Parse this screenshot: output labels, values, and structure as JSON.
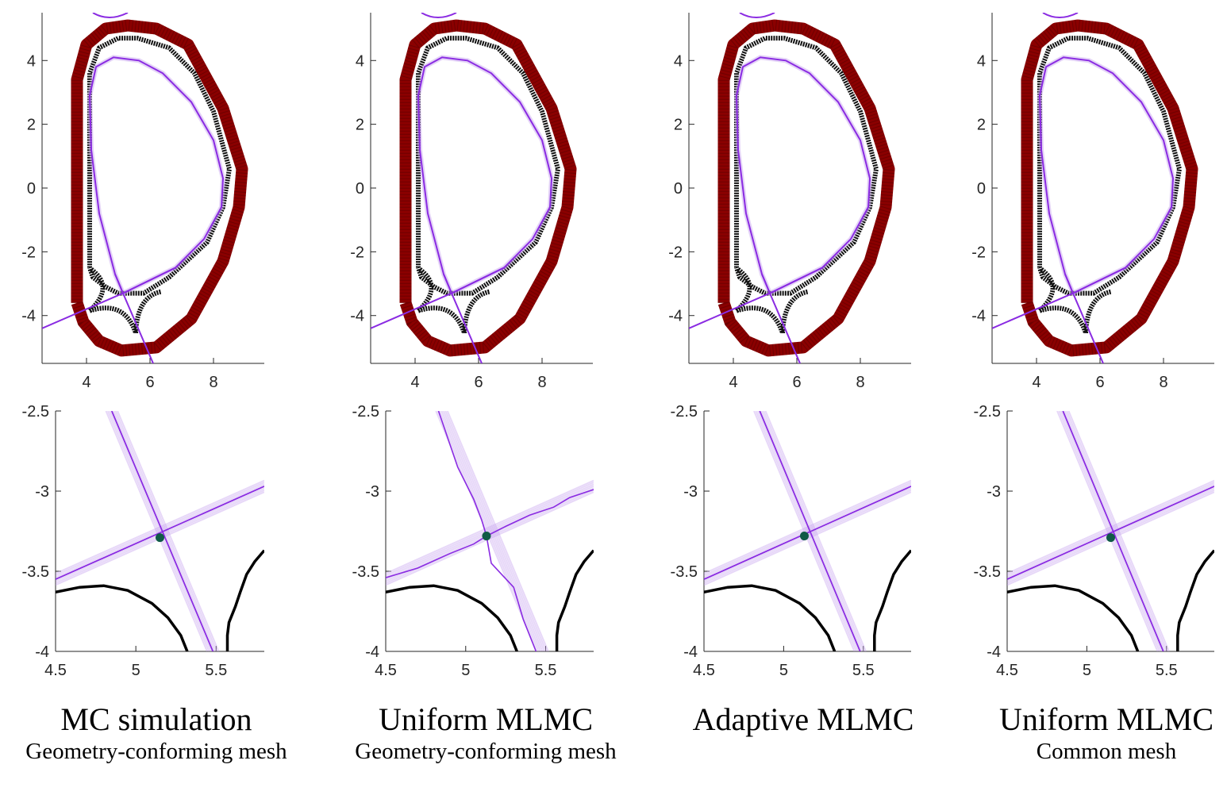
{
  "colors": {
    "wall": "#8b0000",
    "boundary": "#111111",
    "separatrix": "#8a2be2",
    "separatrix_light": "#c9a8f0",
    "xpoint": "#0f5a46",
    "axis": "#262626"
  },
  "captions": [
    {
      "title": "MC simulation",
      "subtitle": "Geometry-conforming mesh"
    },
    {
      "title": "Uniform MLMC",
      "subtitle": "Geometry-conforming mesh"
    },
    {
      "title": "Adaptive MLMC",
      "subtitle": ""
    },
    {
      "title": "Uniform MLMC",
      "subtitle": "Common mesh"
    }
  ],
  "chart_data": [
    {
      "type": "line",
      "panel": "overview",
      "xlim": [
        2.6,
        9.6
      ],
      "ylim": [
        -5.5,
        5.5
      ],
      "xticks": [
        4,
        6,
        8
      ],
      "xtick_labels": [
        "4",
        "6",
        "8"
      ],
      "yticks": [
        4,
        2,
        0,
        -2,
        -4
      ],
      "ytick_labels": [
        "4",
        "2",
        "0",
        "-2",
        "-4"
      ],
      "grid": false,
      "series": [
        {
          "role": "wall",
          "x": [
            3.7,
            3.7,
            4.0,
            4.6,
            5.3,
            6.2,
            7.2,
            8.3,
            8.9,
            8.8,
            8.3,
            7.3,
            6.2,
            5.1,
            4.4,
            3.9,
            3.7
          ],
          "y": [
            -3.6,
            3.4,
            4.5,
            5.0,
            5.1,
            5.0,
            4.5,
            2.5,
            0.6,
            -0.6,
            -2.3,
            -4.1,
            -5.0,
            -5.1,
            -4.8,
            -4.2,
            -3.6
          ]
        },
        {
          "role": "first-wall",
          "x": [
            4.1,
            4.1,
            4.4,
            5.0,
            5.6,
            6.6,
            7.4,
            8.0,
            8.5,
            8.3,
            7.8,
            6.6,
            5.8,
            5.0,
            4.6,
            4.2,
            4.1
          ],
          "y": [
            -2.5,
            3.6,
            4.4,
            4.7,
            4.7,
            4.4,
            3.6,
            2.4,
            0.6,
            -0.6,
            -1.7,
            -2.8,
            -3.3,
            -3.3,
            -3.1,
            -2.8,
            -2.5
          ]
        },
        {
          "role": "separatrix",
          "x": [
            5.15,
            4.9,
            4.4,
            4.15,
            4.1,
            4.3,
            4.85,
            5.65,
            6.4,
            7.3,
            8.0,
            8.3,
            8.25,
            7.7,
            6.8,
            5.15
          ],
          "y": [
            -3.3,
            -2.7,
            -0.8,
            1.2,
            2.9,
            3.8,
            4.1,
            4.0,
            3.6,
            2.7,
            1.5,
            0.3,
            -0.6,
            -1.6,
            -2.5,
            -3.3
          ]
        },
        {
          "role": "separatrix-legs",
          "x": [
            2.6,
            5.15,
            5.15,
            6.1
          ],
          "y": [
            -4.4,
            -3.3,
            -3.3,
            -5.5
          ]
        }
      ]
    },
    {
      "type": "line",
      "panel": "x-point zoom",
      "xlim": [
        4.5,
        5.8
      ],
      "ylim": [
        -4,
        -2.5
      ],
      "xticks": [
        4.5,
        5,
        5.5
      ],
      "xtick_labels": [
        "4.5",
        "5",
        "5.5"
      ],
      "yticks": [
        -2.5,
        -3,
        -3.5,
        -4
      ],
      "ytick_labels": [
        "-2.5",
        "-3",
        "-3.5",
        "-4"
      ],
      "grid": false,
      "xpoints": [
        {
          "x": 5.15,
          "y": -3.29
        },
        {
          "x": 5.13,
          "y": -3.28
        },
        {
          "x": 5.13,
          "y": -3.28
        },
        {
          "x": 5.15,
          "y": -3.29
        }
      ],
      "series": [
        {
          "role": "first-wall-left",
          "x": [
            4.5,
            4.65,
            4.8,
            4.95,
            5.1,
            5.2,
            5.28,
            5.32
          ],
          "y": [
            -3.63,
            -3.6,
            -3.59,
            -3.62,
            -3.7,
            -3.79,
            -3.9,
            -4.0
          ]
        },
        {
          "role": "first-wall-right",
          "x": [
            5.57,
            5.57,
            5.58,
            5.62,
            5.65,
            5.69,
            5.74,
            5.8
          ],
          "y": [
            -4.0,
            -3.9,
            -3.82,
            -3.72,
            -3.63,
            -3.52,
            -3.44,
            -3.37
          ]
        }
      ]
    }
  ]
}
